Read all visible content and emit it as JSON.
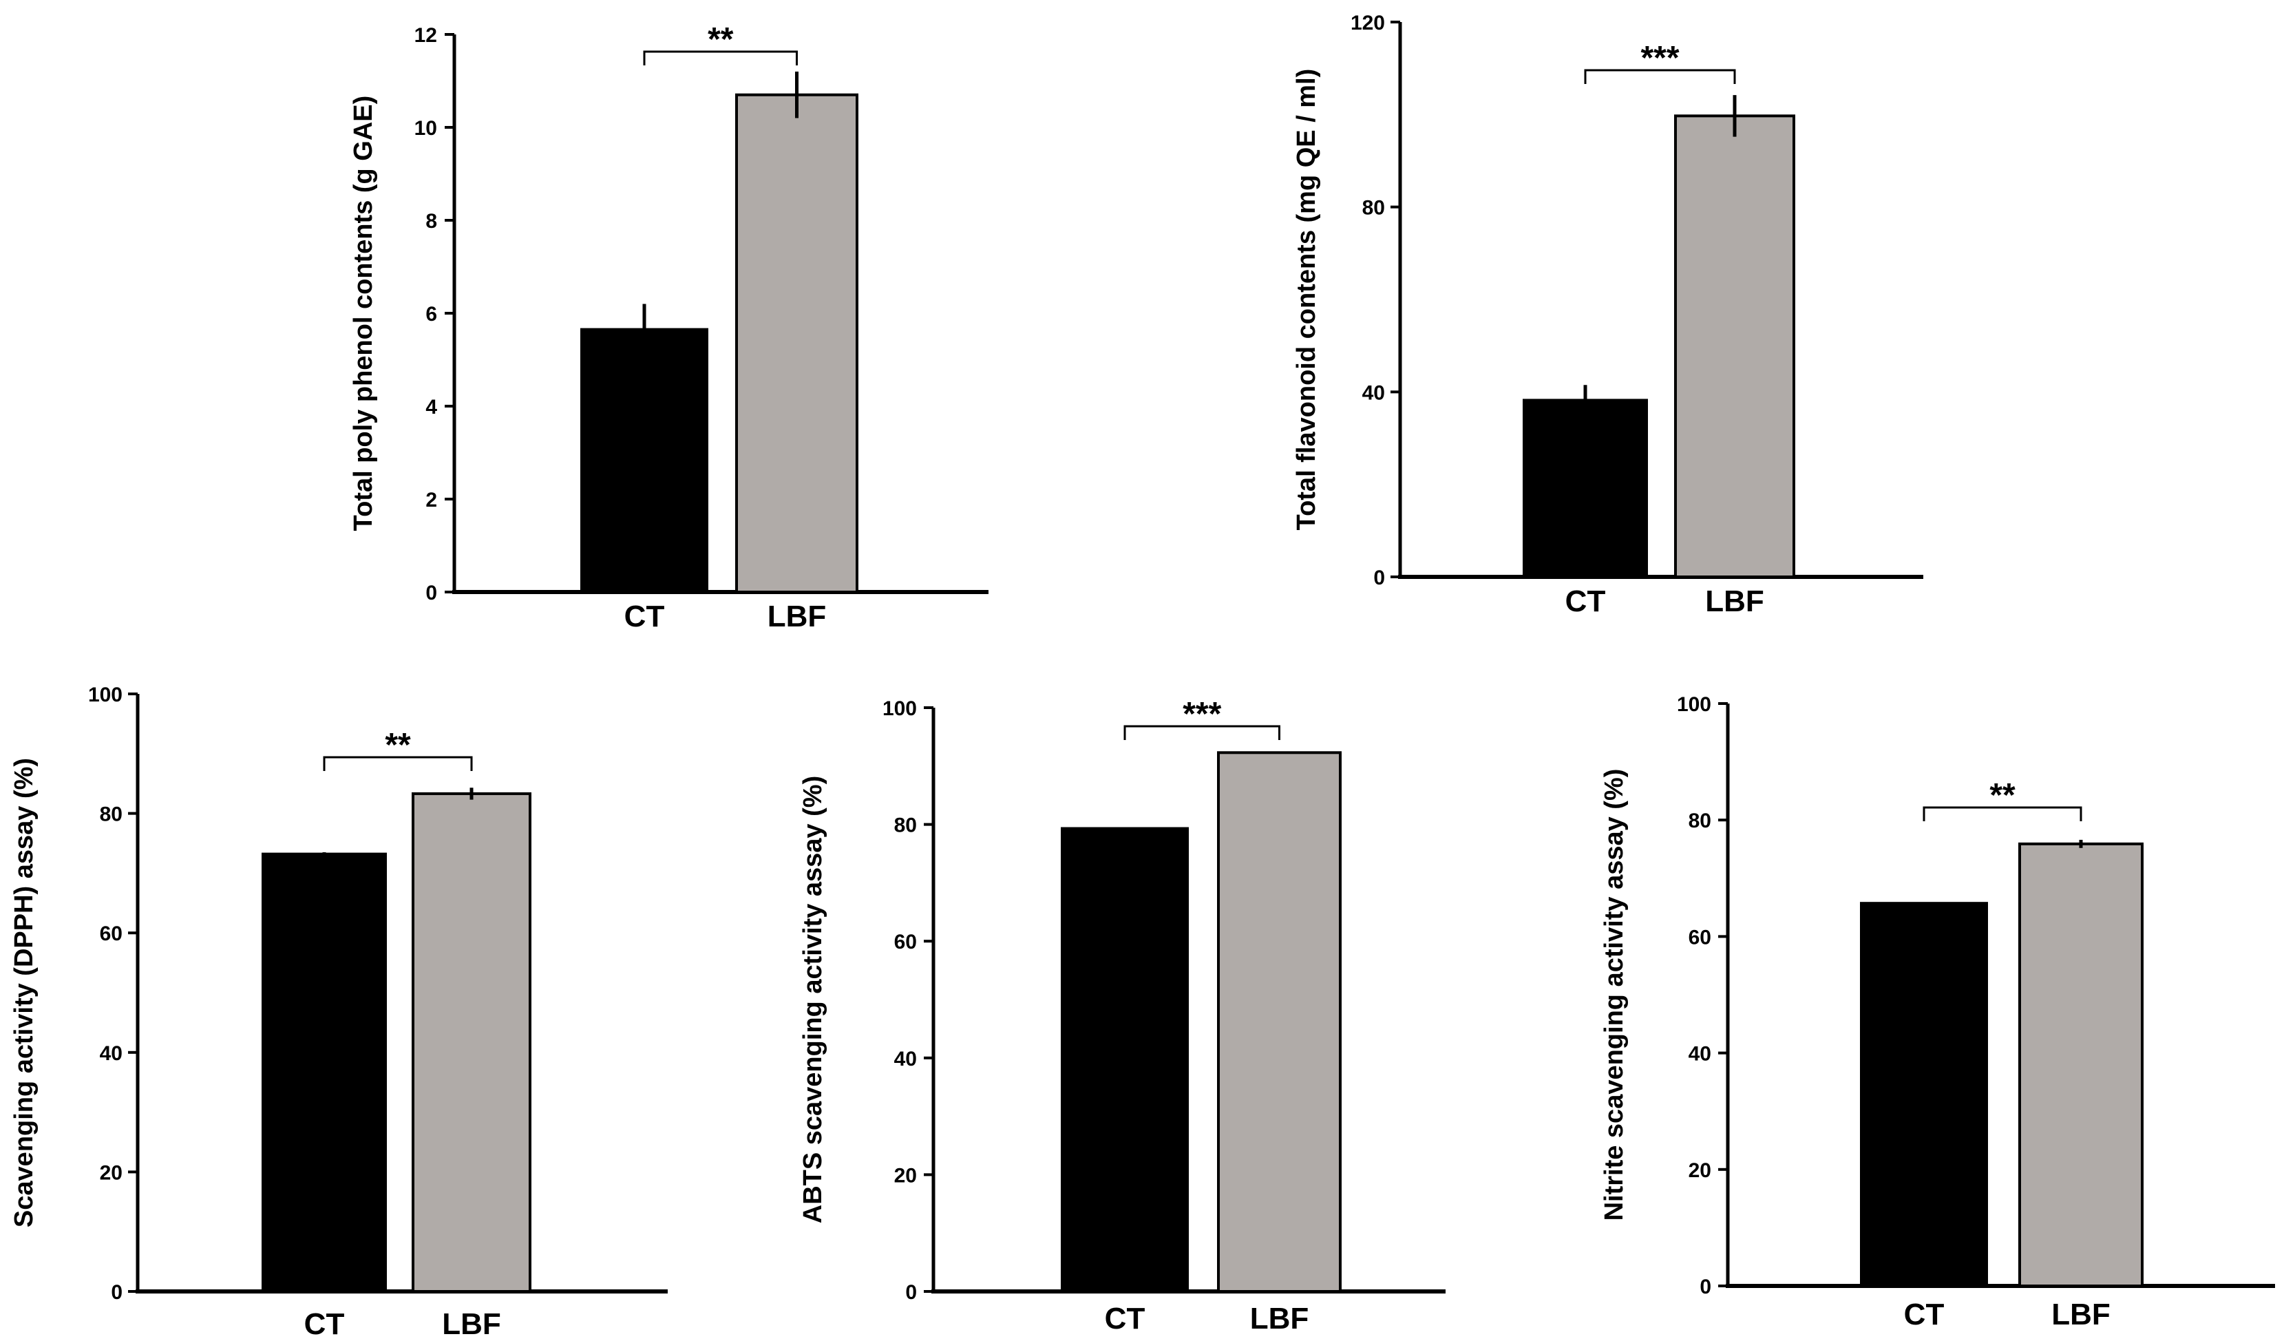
{
  "colors": {
    "ct": "#000000",
    "lbf": "#b0aba8",
    "axis": "#000000"
  },
  "chart_data": [
    {
      "type": "bar",
      "title": "",
      "xlabel": "",
      "ylabel": "Total poly phenol contents (g GAE)",
      "categories": [
        "CT",
        "LBF"
      ],
      "values": [
        5.65,
        10.7
      ],
      "errors": [
        0.55,
        0.5
      ],
      "ylim": [
        0,
        12
      ],
      "yticks": [
        "0",
        "2",
        "4",
        "6",
        "8",
        "10",
        "12"
      ],
      "significance": "**"
    },
    {
      "type": "bar",
      "title": "",
      "xlabel": "",
      "ylabel": "Total flavonoid contents (mg QE / ml)",
      "categories": [
        "CT",
        "LBF"
      ],
      "values": [
        38.2,
        99.7
      ],
      "errors": [
        3.3,
        4.5
      ],
      "ylim": [
        0,
        120
      ],
      "yticks": [
        "0",
        "40",
        "80",
        "120"
      ],
      "significance": "***"
    },
    {
      "type": "bar",
      "title": "",
      "xlabel": "",
      "ylabel": "Scavenging activity (DPPH) assay (%)",
      "categories": [
        "CT",
        "LBF"
      ],
      "values": [
        73.2,
        83.3
      ],
      "errors": [
        0.3,
        1.0
      ],
      "ylim": [
        0,
        100
      ],
      "yticks": [
        "0",
        "20",
        "40",
        "60",
        "80",
        "100"
      ],
      "significance": "**"
    },
    {
      "type": "bar",
      "title": "",
      "xlabel": "",
      "ylabel": "ABTS scavenging activity assay (%)",
      "categories": [
        "CT",
        "LBF"
      ],
      "values": [
        79.3,
        92.3
      ],
      "errors": [
        0.1,
        0.2
      ],
      "ylim": [
        0,
        100
      ],
      "yticks": [
        "0",
        "20",
        "40",
        "60",
        "80",
        "100"
      ],
      "significance": "***"
    },
    {
      "type": "bar",
      "title": "",
      "xlabel": "",
      "ylabel": "Nitrite scavenging activity assay (%)",
      "categories": [
        "CT",
        "LBF"
      ],
      "values": [
        65.7,
        75.9
      ],
      "errors": [
        0.15,
        0.7
      ],
      "ylim": [
        0,
        100
      ],
      "yticks": [
        "0",
        "20",
        "40",
        "60",
        "80",
        "100"
      ],
      "significance": "**"
    }
  ]
}
